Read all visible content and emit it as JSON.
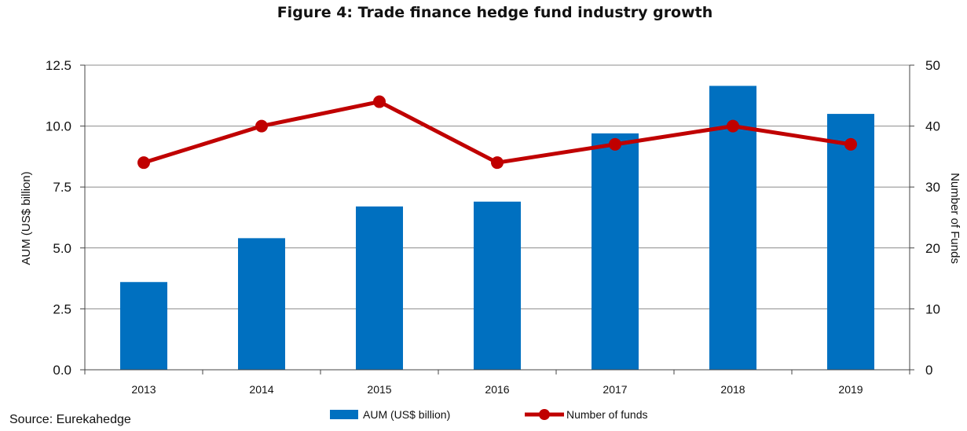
{
  "chart_data": {
    "type": "bar+line",
    "title": "Figure 4: Trade finance hedge fund industry growth",
    "categories": [
      "2013",
      "2014",
      "2015",
      "2016",
      "2017",
      "2018",
      "2019"
    ],
    "series": [
      {
        "name": "AUM (US$ billion)",
        "type": "bar",
        "axis": "left",
        "color": "#0070C0",
        "values": [
          3.6,
          5.4,
          6.7,
          6.9,
          9.7,
          11.65,
          10.5
        ]
      },
      {
        "name": "Number of funds",
        "type": "line",
        "axis": "right",
        "color": "#C00000",
        "values": [
          34,
          40,
          44,
          34,
          37,
          40,
          37
        ]
      }
    ],
    "ylabel": "AUM (US$ billion)",
    "ylim": [
      0,
      12.5
    ],
    "yticks": [
      "0.0",
      "2.5",
      "5.0",
      "7.5",
      "10.0",
      "12.5"
    ],
    "y2label": "Number of Funds",
    "y2lim": [
      0,
      50
    ],
    "y2ticks": [
      "0",
      "10",
      "20",
      "30",
      "40",
      "50"
    ],
    "grid": true,
    "legend_position": "bottom",
    "source": "Source: Eurekahedge"
  }
}
